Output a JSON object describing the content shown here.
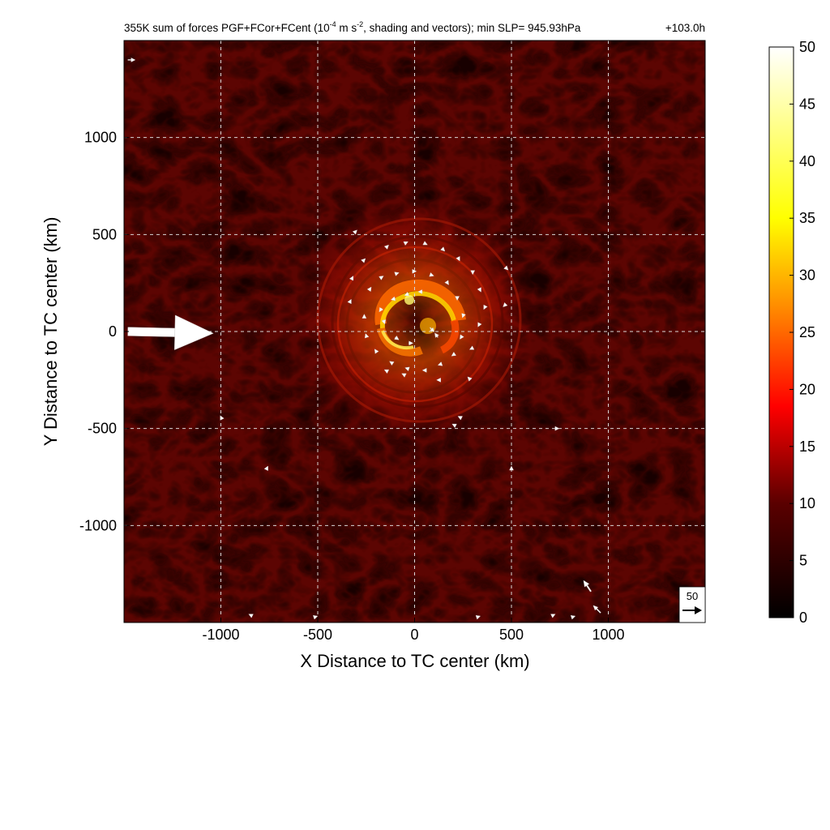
{
  "chart_data": {
    "type": "heatmap",
    "title_main": "355K sum of forces PGF+FCor+FCent (10",
    "title_exp1": "-4",
    "title_mid": " m s",
    "title_exp2": "-2",
    "title_rest": ", shading and vectors); min SLP= 945.93hPa",
    "time_label": "+103.0h",
    "xlabel": "X Distance to TC center (km)",
    "ylabel": "Y Distance to TC center (km)",
    "xlim": [
      -1500,
      1500
    ],
    "ylim": [
      -1500,
      1500
    ],
    "grid": true,
    "x_ticks": [
      {
        "value": -1000,
        "label": "-1000"
      },
      {
        "value": -500,
        "label": "-500"
      },
      {
        "value": 0,
        "label": "0"
      },
      {
        "value": 500,
        "label": "500"
      },
      {
        "value": 1000,
        "label": "1000"
      }
    ],
    "y_ticks": [
      {
        "value": 1000,
        "label": "1000"
      },
      {
        "value": 500,
        "label": "500"
      },
      {
        "value": 0,
        "label": "0"
      },
      {
        "value": -500,
        "label": "-500"
      },
      {
        "value": -1000,
        "label": "-1000"
      }
    ],
    "colorbar": {
      "colormap": "hot",
      "range": [
        0,
        50
      ],
      "ticks": [
        {
          "value": 0,
          "label": "0"
        },
        {
          "value": 5,
          "label": "5"
        },
        {
          "value": 10,
          "label": "10"
        },
        {
          "value": 15,
          "label": "15"
        },
        {
          "value": 20,
          "label": "20"
        },
        {
          "value": 25,
          "label": "25"
        },
        {
          "value": 30,
          "label": "30"
        },
        {
          "value": 35,
          "label": "35"
        },
        {
          "value": 40,
          "label": "40"
        },
        {
          "value": 45,
          "label": "45"
        },
        {
          "value": 50,
          "label": "50"
        }
      ]
    },
    "reference_vector": {
      "label": "50",
      "magnitude": 50
    },
    "vectors": [
      {
        "x": -1480,
        "y": 0,
        "u": 140,
        "v": -3
      },
      {
        "x": -1480,
        "y": 1400,
        "u": 12,
        "v": 0
      },
      {
        "x": 910,
        "y": -1340,
        "u": -12,
        "v": 18
      },
      {
        "x": 960,
        "y": -1450,
        "u": -12,
        "v": 12
      },
      {
        "x": -100,
        "y": 170,
        "u": -7,
        "v": -2
      },
      {
        "x": -30,
        "y": 195,
        "u": -7,
        "v": -3
      },
      {
        "x": 40,
        "y": 205,
        "u": -7,
        "v": 0
      },
      {
        "x": -170,
        "y": 120,
        "u": -4,
        "v": -6
      },
      {
        "x": -160,
        "y": 60,
        "u": 2,
        "v": -7
      },
      {
        "x": -100,
        "y": -30,
        "u": 6,
        "v": -4
      },
      {
        "x": -30,
        "y": -60,
        "u": 7,
        "v": 0
      },
      {
        "x": 80,
        "y": 20,
        "u": 7,
        "v": -7
      },
      {
        "x": 120,
        "y": -30,
        "u": -5,
        "v": 7
      },
      {
        "x": -230,
        "y": 220,
        "u": 2,
        "v": 3
      },
      {
        "x": -170,
        "y": 280,
        "u": 3,
        "v": 2
      },
      {
        "x": -90,
        "y": 300,
        "u": 3,
        "v": 1
      },
      {
        "x": 0,
        "y": 310,
        "u": 3,
        "v": 0
      },
      {
        "x": 90,
        "y": 290,
        "u": 3,
        "v": -1
      },
      {
        "x": 170,
        "y": 250,
        "u": 2,
        "v": -3
      },
      {
        "x": 220,
        "y": 170,
        "u": 0,
        "v": -3
      },
      {
        "x": 250,
        "y": 80,
        "u": -1,
        "v": -3
      },
      {
        "x": 240,
        "y": -30,
        "u": -2,
        "v": -3
      },
      {
        "x": 200,
        "y": -120,
        "u": -3,
        "v": -2
      },
      {
        "x": 130,
        "y": -170,
        "u": -3,
        "v": -1
      },
      {
        "x": 50,
        "y": -200,
        "u": -3,
        "v": 0
      },
      {
        "x": -40,
        "y": -190,
        "u": -3,
        "v": 1
      },
      {
        "x": -120,
        "y": -160,
        "u": -3,
        "v": 2
      },
      {
        "x": -200,
        "y": -100,
        "u": -2,
        "v": 3
      },
      {
        "x": -250,
        "y": -20,
        "u": -1,
        "v": 3
      },
      {
        "x": -260,
        "y": 80,
        "u": 0,
        "v": 3
      },
      {
        "x": -140,
        "y": 440,
        "u": 2,
        "v": 2
      },
      {
        "x": -40,
        "y": 460,
        "u": 2,
        "v": 1
      },
      {
        "x": 60,
        "y": 450,
        "u": 2,
        "v": -1
      },
      {
        "x": 150,
        "y": 420,
        "u": 2,
        "v": -2
      },
      {
        "x": 230,
        "y": 370,
        "u": 1,
        "v": -2
      },
      {
        "x": 300,
        "y": 300,
        "u": 0,
        "v": -2
      },
      {
        "x": 340,
        "y": 210,
        "u": 1,
        "v": -2
      },
      {
        "x": 360,
        "y": 120,
        "u": -1,
        "v": -2
      },
      {
        "x": 330,
        "y": 30,
        "u": -1,
        "v": -2
      },
      {
        "x": 290,
        "y": -90,
        "u": -2,
        "v": -1
      },
      {
        "x": -330,
        "y": 160,
        "u": 1,
        "v": 2
      },
      {
        "x": -320,
        "y": 280,
        "u": 1,
        "v": 2
      },
      {
        "x": -260,
        "y": 370,
        "u": 2,
        "v": 2
      },
      {
        "x": -150,
        "y": -200,
        "u": -2,
        "v": 1
      },
      {
        "x": -60,
        "y": -220,
        "u": -2,
        "v": 1
      },
      {
        "x": 120,
        "y": -250,
        "u": -2,
        "v": 0
      },
      {
        "x": 280,
        "y": -240,
        "u": -2,
        "v": 2
      },
      {
        "x": 230,
        "y": -440,
        "u": -2,
        "v": 1
      },
      {
        "x": 200,
        "y": -480,
        "u": -2,
        "v": 1
      },
      {
        "x": -300,
        "y": 520,
        "u": 1,
        "v": 1
      },
      {
        "x": 480,
        "y": 320,
        "u": 1,
        "v": -1
      },
      {
        "x": 460,
        "y": 130,
        "u": -1,
        "v": -1
      },
      {
        "x": -1000,
        "y": -440,
        "u": -1,
        "v": 2
      },
      {
        "x": -760,
        "y": -700,
        "u": 1,
        "v": 2
      },
      {
        "x": 500,
        "y": -700,
        "u": 0,
        "v": 2
      },
      {
        "x": -510,
        "y": -1470,
        "u": 3,
        "v": 1
      },
      {
        "x": 330,
        "y": -1470,
        "u": 3,
        "v": 1
      },
      {
        "x": -850,
        "y": -1460,
        "u": -2,
        "v": 1
      },
      {
        "x": 820,
        "y": -1470,
        "u": 3,
        "v": 1
      },
      {
        "x": 720,
        "y": -1460,
        "u": 2,
        "v": 1
      },
      {
        "x": 740,
        "y": -500,
        "u": 2,
        "v": 0
      }
    ]
  }
}
